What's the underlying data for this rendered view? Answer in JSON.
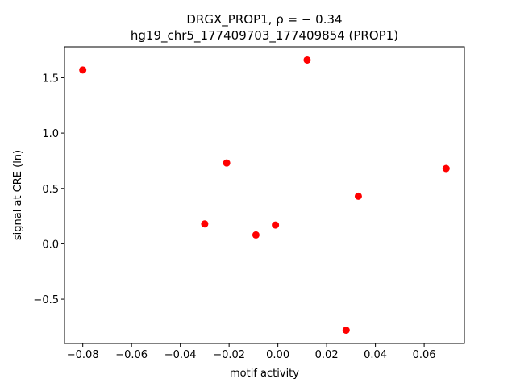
{
  "chart_data": {
    "type": "scatter",
    "title_line1": "DRGX_PROP1, ρ = − 0.34",
    "title_line2": "hg19_chr5_177409703_177409854 (PROP1)",
    "xlabel": "motif activity",
    "ylabel": "signal at CRE (ln)",
    "xlim": [
      -0.0875,
      0.0765
    ],
    "ylim": [
      -0.9,
      1.78
    ],
    "xticks": [
      -0.08,
      -0.06,
      -0.04,
      -0.02,
      0.0,
      0.02,
      0.04,
      0.06
    ],
    "xtick_labels": [
      "−0.08",
      "−0.06",
      "−0.04",
      "−0.02",
      "0.00",
      "0.02",
      "0.04",
      "0.06"
    ],
    "yticks": [
      -0.5,
      0.0,
      0.5,
      1.0,
      1.5
    ],
    "ytick_labels": [
      "−0.5",
      "0.0",
      "0.5",
      "1.0",
      "1.5"
    ],
    "grid": false,
    "point_color": "#ff0000",
    "points": [
      {
        "x": -0.08,
        "y": 1.57
      },
      {
        "x": 0.012,
        "y": 1.66
      },
      {
        "x": -0.021,
        "y": 0.73
      },
      {
        "x": 0.069,
        "y": 0.68
      },
      {
        "x": 0.033,
        "y": 0.43
      },
      {
        "x": -0.03,
        "y": 0.18
      },
      {
        "x": -0.001,
        "y": 0.17
      },
      {
        "x": -0.009,
        "y": 0.08
      },
      {
        "x": 0.028,
        "y": -0.78
      }
    ]
  }
}
